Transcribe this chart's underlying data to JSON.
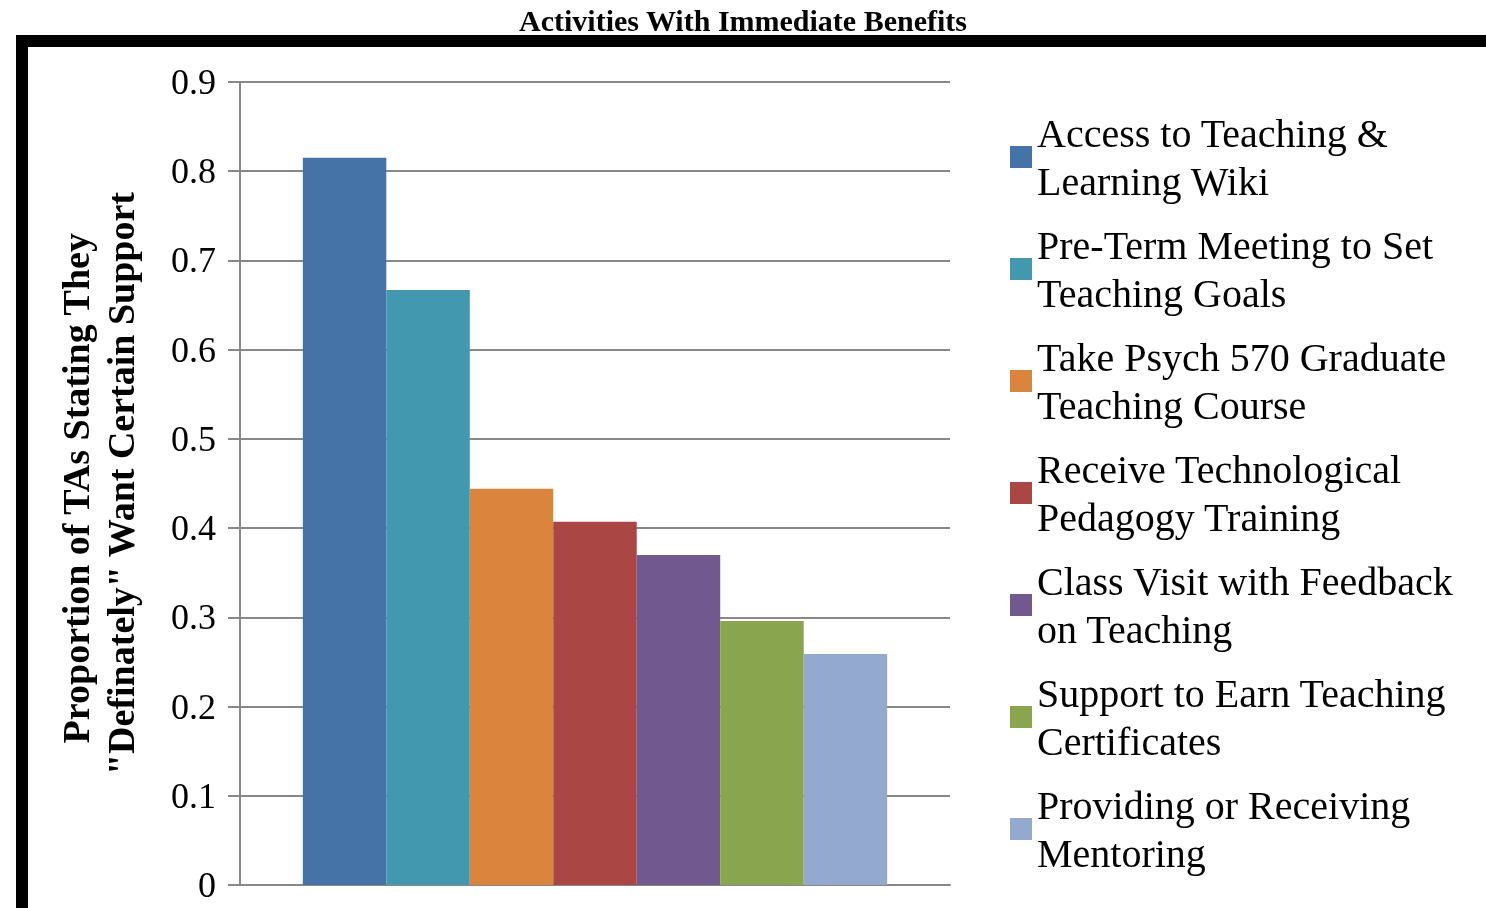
{
  "chart_data": {
    "type": "bar",
    "title": "Activities With Immediate Benefits",
    "ylabel": "Proportion of TAs Stating They \"Definately\" Want Certain Support",
    "categories": [
      null
    ],
    "series": [
      {
        "name": "Access to Teaching & Learning Wiki",
        "color": "#4572a7",
        "values": [
          0.815
        ]
      },
      {
        "name": "Pre-Term Meeting to Set Teaching Goals",
        "color": "#4198af",
        "values": [
          0.667
        ]
      },
      {
        "name": "Take Psych 570 Graduate Teaching Course",
        "color": "#db843d",
        "values": [
          0.444
        ]
      },
      {
        "name": "Receive Technological Pedagogy Training",
        "color": "#aa4643",
        "values": [
          0.407
        ]
      },
      {
        "name": "Class Visit with Feedback on Teaching",
        "color": "#71588f",
        "values": [
          0.37
        ]
      },
      {
        "name": "Support to Earn Teaching Certificates",
        "color": "#89a54e",
        "values": [
          0.296
        ]
      },
      {
        "name": "Providing or Receiving Mentoring",
        "color": "#93a9cf",
        "values": [
          0.259
        ]
      }
    ],
    "ylim": [
      0,
      0.9
    ],
    "yticks": [
      0,
      0.1,
      0.2,
      0.3,
      0.4,
      0.5,
      0.6,
      0.7,
      0.8,
      0.9
    ],
    "grid": "y",
    "legend": "right"
  }
}
